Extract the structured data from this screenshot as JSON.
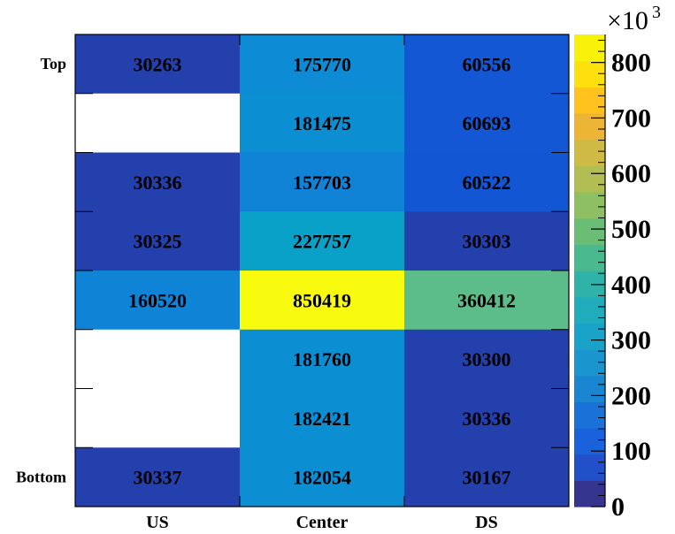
{
  "chart_data": {
    "type": "heatmap",
    "x_labels": [
      "US",
      "Center",
      "DS"
    ],
    "y_labels": [
      "Top",
      "",
      "",
      "",
      "",
      "",
      "",
      "Bottom"
    ],
    "values": [
      [
        30263,
        175770,
        60556
      ],
      [
        null,
        181475,
        60693
      ],
      [
        30336,
        157703,
        60522
      ],
      [
        30325,
        227757,
        30303
      ],
      [
        160520,
        850419,
        360412
      ],
      [
        null,
        181760,
        30300
      ],
      [
        null,
        182421,
        30336
      ],
      [
        30337,
        182054,
        30167
      ]
    ],
    "zlim": [
      0,
      850419
    ],
    "colorbar": {
      "ticks": [
        "0",
        "100",
        "200",
        "300",
        "400",
        "500",
        "600",
        "700",
        "800"
      ],
      "tick_values": [
        0,
        100,
        200,
        300,
        400,
        500,
        600,
        700,
        800
      ],
      "multiplier_base": "×10",
      "multiplier_exp": "3",
      "scale_max": 850.419,
      "palette": [
        "#35358f",
        "#2150c9",
        "#1962dc",
        "#1a72d9",
        "#1a86d2",
        "#1b95cd",
        "#1aa3c9",
        "#21acbb",
        "#2fb3a8",
        "#4bb98e",
        "#6abd75",
        "#8ebf63",
        "#b0be54",
        "#d0ba46",
        "#ecb535",
        "#ffc21e",
        "#fee00e",
        "#f8f20b"
      ]
    },
    "colormap": "kBird",
    "empty_color": "#ffffff"
  }
}
